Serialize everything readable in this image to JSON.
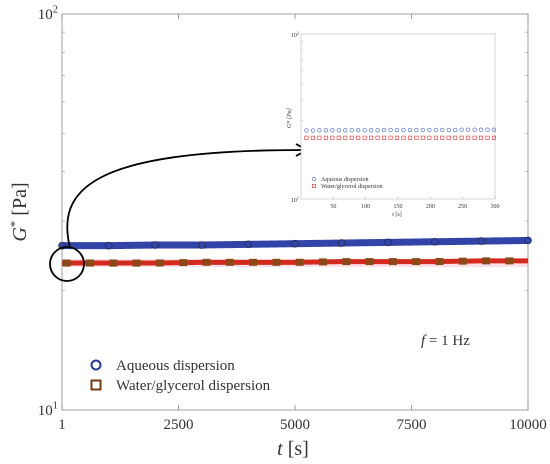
{
  "chart_data": {
    "type": "scatter",
    "xlabel": "t [s]",
    "ylabel": "G* [Pa]",
    "yscale": "log",
    "xlim": [
      0,
      10000
    ],
    "ylim": [
      10,
      100
    ],
    "xticks": [
      1,
      2500,
      5000,
      7500,
      10000
    ],
    "xtick_labels": [
      "1",
      "2500",
      "5000",
      "7500",
      "10000"
    ],
    "yticks": [
      10,
      100
    ],
    "ytick_labels": [
      "10^1",
      "10^2"
    ],
    "annotation": "f = 1 Hz",
    "legend_position": "bottom-left",
    "grid": false,
    "series": [
      {
        "name": "Aqueous dispersion",
        "marker": "circle",
        "color": "#2b3a9a",
        "x": [
          1,
          1000,
          2000,
          3000,
          4000,
          5000,
          6000,
          7000,
          8000,
          9000,
          10000
        ],
        "y": [
          26.0,
          26.0,
          26.1,
          26.1,
          26.2,
          26.3,
          26.4,
          26.5,
          26.6,
          26.7,
          26.8
        ]
      },
      {
        "name": "Water/glycerol dispersion",
        "marker": "square",
        "color": "#7a3a10",
        "x": [
          1,
          1000,
          2000,
          3000,
          4000,
          5000,
          6000,
          7000,
          8000,
          9000,
          10000
        ],
        "y": [
          23.5,
          23.5,
          23.5,
          23.6,
          23.6,
          23.6,
          23.7,
          23.7,
          23.7,
          23.8,
          23.8
        ]
      }
    ],
    "inset": {
      "type": "scatter",
      "xlabel": "t [s]",
      "ylabel": "G* [Pa]",
      "yscale": "log",
      "xlim": [
        0,
        300
      ],
      "ylim": [
        10,
        100
      ],
      "xticks": [
        50,
        100,
        150,
        200,
        250,
        300
      ],
      "xtick_labels": [
        "50",
        "100",
        "150",
        "200",
        "250",
        "300"
      ],
      "ytick_labels": [
        "10^1",
        "10^2"
      ],
      "series": [
        {
          "name": "Aqueous dispersion",
          "marker": "circle",
          "color": "#4060c0",
          "x": [
            10,
            20,
            30,
            40,
            50,
            60,
            70,
            80,
            90,
            100,
            110,
            120,
            130,
            140,
            150,
            160,
            170,
            180,
            190,
            200,
            210,
            220,
            230,
            240,
            250,
            260,
            270,
            280,
            290,
            300
          ],
          "y": [
            26.0,
            26.0,
            26.1,
            26.1,
            26.1,
            26.1,
            26.1,
            26.1,
            26.1,
            26.1,
            26.1,
            26.1,
            26.2,
            26.2,
            26.2,
            26.2,
            26.2,
            26.2,
            26.2,
            26.2,
            26.2,
            26.2,
            26.2,
            26.2,
            26.3,
            26.3,
            26.3,
            26.3,
            26.3,
            26.3
          ]
        },
        {
          "name": "Water/glycerol dispersion",
          "marker": "square",
          "color": "#e03030",
          "x": [
            10,
            20,
            30,
            40,
            50,
            60,
            70,
            80,
            90,
            100,
            110,
            120,
            130,
            140,
            150,
            160,
            170,
            180,
            190,
            200,
            210,
            220,
            230,
            240,
            250,
            260,
            270,
            280,
            290,
            300
          ],
          "y": [
            23.5,
            23.5,
            23.5,
            23.5,
            23.5,
            23.5,
            23.5,
            23.5,
            23.5,
            23.5,
            23.5,
            23.5,
            23.5,
            23.5,
            23.5,
            23.5,
            23.5,
            23.5,
            23.5,
            23.5,
            23.5,
            23.5,
            23.5,
            23.5,
            23.5,
            23.5,
            23.5,
            23.5,
            23.5,
            23.5
          ]
        }
      ]
    }
  }
}
